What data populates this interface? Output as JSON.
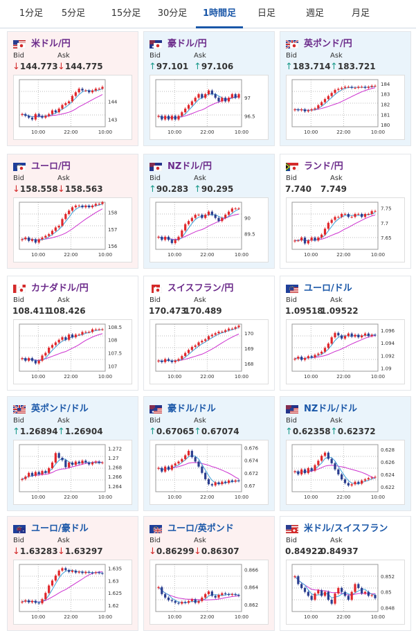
{
  "tabs": [
    {
      "label": "1分足",
      "active": false
    },
    {
      "label": "5分足",
      "active": false
    },
    {
      "label": "15分足",
      "active": false
    },
    {
      "label": "30分足",
      "active": false
    },
    {
      "label": "1時間足",
      "active": true
    },
    {
      "label": "日足",
      "active": false
    },
    {
      "label": "週足",
      "active": false
    },
    {
      "label": "月足",
      "active": false
    }
  ],
  "labels": {
    "bid": "Bid",
    "ask": "Ask"
  },
  "colors": {
    "accent": "#1a57a8",
    "down": "#d42a2a",
    "up": "#1a9a8a",
    "ma_short": "#3aa0d8",
    "ma_long": "#cc2fcf",
    "candle_up": "#e0262b",
    "candle_down": "#2a3d8f"
  },
  "cards": [
    {
      "name": "usd-jpy",
      "title": "米ドル/円",
      "flags": [
        "us",
        "jp"
      ],
      "dir": "down",
      "bid": "144.773",
      "ask": "144.775",
      "arrow": "down",
      "chart_data": {
        "type": "candlestick",
        "x_ticks": [
          "10:00",
          "22:00",
          "10:00"
        ],
        "y_ticks": [
          "144",
          "143"
        ],
        "ylim": [
          142.6,
          145.2
        ],
        "closes": [
          143.3,
          143.2,
          143.1,
          143.0,
          143.3,
          143.2,
          143.1,
          143.2,
          143.3,
          143.5,
          143.4,
          143.6,
          143.8,
          143.9,
          144.0,
          144.3,
          144.5,
          144.7,
          144.6,
          144.6,
          144.5,
          144.6,
          144.7,
          144.7,
          144.8
        ]
      }
    },
    {
      "name": "aud-jpy",
      "title": "豪ドル/円",
      "flags": [
        "au",
        "jp"
      ],
      "dir": "up",
      "bid": "97.101",
      "ask": "97.106",
      "arrow": "up",
      "chart_data": {
        "type": "candlestick",
        "x_ticks": [
          "10:00",
          "22:00",
          "10:00"
        ],
        "y_ticks": [
          "97",
          "96.5"
        ],
        "ylim": [
          96.2,
          97.5
        ],
        "closes": [
          96.5,
          96.4,
          96.5,
          96.4,
          96.5,
          96.4,
          96.5,
          96.6,
          96.7,
          96.8,
          96.9,
          97.0,
          97.1,
          97.0,
          97.1,
          97.2,
          97.1,
          97.0,
          96.9,
          97.0,
          96.9,
          97.0,
          97.1,
          97.0,
          97.1
        ]
      }
    },
    {
      "name": "gbp-jpy",
      "title": "英ポンド/円",
      "flags": [
        "gb",
        "jp"
      ],
      "dir": "up",
      "bid": "183.714",
      "ask": "183.721",
      "arrow": "up",
      "chart_data": {
        "type": "candlestick",
        "x_ticks": [
          "10:00",
          "22:00",
          "10:00"
        ],
        "y_ticks": [
          "184",
          "183",
          "182",
          "181",
          "180"
        ],
        "ylim": [
          179.8,
          184.4
        ],
        "closes": [
          181.5,
          181.4,
          181.5,
          181.3,
          181.4,
          181.5,
          181.6,
          181.9,
          182.2,
          182.5,
          182.8,
          183.1,
          183.4,
          183.5,
          183.6,
          183.7,
          183.7,
          183.6,
          183.6,
          183.7,
          183.7,
          183.6,
          183.7,
          183.8,
          183.8
        ]
      }
    },
    {
      "name": "eur-jpy",
      "title": "ユーロ/円",
      "flags": [
        "eu",
        "jp"
      ],
      "dir": "down",
      "bid": "158.558",
      "ask": "158.563",
      "arrow": "down",
      "chart_data": {
        "type": "candlestick",
        "x_ticks": [
          "10:00",
          "22:00",
          "10:00"
        ],
        "y_ticks": [
          "158",
          "157",
          "156"
        ],
        "ylim": [
          155.8,
          158.6
        ],
        "closes": [
          156.4,
          156.5,
          156.3,
          156.4,
          156.2,
          156.4,
          156.5,
          156.6,
          156.7,
          156.9,
          157.1,
          157.2,
          157.6,
          157.9,
          158.1,
          158.3,
          158.4,
          158.4,
          158.3,
          158.4,
          158.3,
          158.4,
          158.5,
          158.5,
          158.6
        ]
      }
    },
    {
      "name": "nzd-jpy",
      "title": "NZドル/円",
      "flags": [
        "nz",
        "jp"
      ],
      "dir": "up",
      "bid": "90.283",
      "ask": "90.295",
      "arrow": "up",
      "chart_data": {
        "type": "candlestick",
        "x_ticks": [
          "10:00",
          "22:00",
          "10:00"
        ],
        "y_ticks": [
          "90",
          "89.5"
        ],
        "ylim": [
          89.0,
          90.5
        ],
        "closes": [
          89.4,
          89.3,
          89.4,
          89.3,
          89.2,
          89.3,
          89.4,
          89.6,
          89.8,
          89.9,
          90.0,
          90.1,
          90.1,
          90.0,
          90.1,
          90.2,
          90.1,
          90.0,
          89.9,
          90.0,
          90.1,
          90.2,
          90.3,
          90.3,
          90.3
        ]
      }
    },
    {
      "name": "zar-jpy",
      "title": "ランド/円",
      "flags": [
        "za",
        "jp"
      ],
      "dir": "flat",
      "bid": "7.740",
      "ask": "7.749",
      "arrow": "none",
      "chart_data": {
        "type": "candlestick",
        "x_ticks": [
          "10:00",
          "22:00",
          "10:00"
        ],
        "y_ticks": [
          "7.75",
          "7.7",
          "7.65"
        ],
        "ylim": [
          7.61,
          7.77
        ],
        "closes": [
          7.64,
          7.64,
          7.65,
          7.63,
          7.64,
          7.65,
          7.64,
          7.65,
          7.66,
          7.68,
          7.7,
          7.71,
          7.72,
          7.72,
          7.73,
          7.73,
          7.72,
          7.72,
          7.73,
          7.73,
          7.72,
          7.73,
          7.73,
          7.74,
          7.74
        ]
      }
    },
    {
      "name": "cad-jpy",
      "title": "カナダドル/円",
      "flags": [
        "ca",
        "jp"
      ],
      "dir": "flat",
      "bid": "108.411",
      "ask": "108.426",
      "arrow": "none",
      "chart_data": {
        "type": "candlestick",
        "x_ticks": [
          "10:00",
          "22:00",
          "10:00"
        ],
        "y_ticks": [
          "108.5",
          "108",
          "107.5",
          "107"
        ],
        "ylim": [
          106.8,
          108.6
        ],
        "closes": [
          107.3,
          107.2,
          107.3,
          107.2,
          107.1,
          107.2,
          107.4,
          107.5,
          107.7,
          107.8,
          107.9,
          108.0,
          108.1,
          108.0,
          108.2,
          108.1,
          108.2,
          108.2,
          108.3,
          108.3,
          108.3,
          108.4,
          108.4,
          108.4,
          108.4
        ]
      }
    },
    {
      "name": "chf-jpy",
      "title": "スイスフラン/円",
      "flags": [
        "ch",
        "jp"
      ],
      "dir": "flat",
      "bid": "170.473",
      "ask": "170.489",
      "arrow": "none",
      "chart_data": {
        "type": "candlestick",
        "x_ticks": [
          "10:00",
          "22:00",
          "10:00"
        ],
        "y_ticks": [
          "170",
          "169",
          "168"
        ],
        "ylim": [
          167.5,
          170.6
        ],
        "closes": [
          168.2,
          168.1,
          168.3,
          168.2,
          168.1,
          168.2,
          168.3,
          168.5,
          168.7,
          168.9,
          169.1,
          169.2,
          169.4,
          169.5,
          169.6,
          169.8,
          169.9,
          170.0,
          170.1,
          170.1,
          170.2,
          170.3,
          170.3,
          170.4,
          170.5
        ]
      }
    },
    {
      "name": "eur-usd",
      "title": "ユーロ/ドル",
      "flags": [
        "eu",
        "us"
      ],
      "dir": "flat",
      "bid": "1.09518",
      "ask": "1.09522",
      "arrow": "none",
      "chart_data": {
        "type": "candlestick",
        "x_ticks": [
          "10:00",
          "22:00",
          "10:00"
        ],
        "y_ticks": [
          "1.096",
          "1.094",
          "1.092",
          "1.09"
        ],
        "ylim": [
          1.0895,
          1.097
        ],
        "closes": [
          1.0915,
          1.0918,
          1.0913,
          1.0916,
          1.0919,
          1.0917,
          1.0921,
          1.0923,
          1.0926,
          1.0932,
          1.0939,
          1.0949,
          1.0956,
          1.0952,
          1.0947,
          1.0951,
          1.0955,
          1.095,
          1.0953,
          1.0949,
          1.0952,
          1.0955,
          1.0951,
          1.0953,
          1.0952
        ]
      }
    },
    {
      "name": "gbp-usd",
      "title": "英ポンド/ドル",
      "flags": [
        "gb",
        "us"
      ],
      "dir": "up",
      "bid": "1.26894",
      "ask": "1.26904",
      "arrow": "up",
      "chart_data": {
        "type": "candlestick",
        "x_ticks": [
          "10:00",
          "22:00",
          "10:00"
        ],
        "y_ticks": [
          "1.272",
          "1.27",
          "1.268",
          "1.266",
          "1.264"
        ],
        "ylim": [
          1.2628,
          1.2728
        ],
        "closes": [
          1.2655,
          1.266,
          1.2668,
          1.2662,
          1.267,
          1.2665,
          1.2672,
          1.2668,
          1.2678,
          1.269,
          1.271,
          1.27,
          1.2695,
          1.268,
          1.269,
          1.2685,
          1.2692,
          1.2688,
          1.2694,
          1.269,
          1.2686,
          1.269,
          1.2692,
          1.2689,
          1.269
        ]
      }
    },
    {
      "name": "aud-usd",
      "title": "豪ドル/ドル",
      "flags": [
        "au",
        "us"
      ],
      "dir": "up",
      "bid": "0.67065",
      "ask": "0.67074",
      "arrow": "up",
      "chart_data": {
        "type": "candlestick",
        "x_ticks": [
          "10:00",
          "22:00",
          "10:00"
        ],
        "y_ticks": [
          "0.676",
          "0.674",
          "0.672",
          "0.67"
        ],
        "ylim": [
          0.669,
          0.6765
        ],
        "closes": [
          0.6728,
          0.6722,
          0.673,
          0.6725,
          0.6732,
          0.6735,
          0.6738,
          0.6742,
          0.6748,
          0.6755,
          0.6745,
          0.6738,
          0.673,
          0.672,
          0.671,
          0.6702,
          0.67,
          0.6705,
          0.6702,
          0.6706,
          0.6704,
          0.6708,
          0.6706,
          0.6708,
          0.6707
        ]
      }
    },
    {
      "name": "nzd-usd",
      "title": "NZドル/ドル",
      "flags": [
        "nz",
        "us"
      ],
      "dir": "up",
      "bid": "0.62358",
      "ask": "0.62372",
      "arrow": "up",
      "chart_data": {
        "type": "candlestick",
        "x_ticks": [
          "10:00",
          "22:00",
          "10:00"
        ],
        "y_ticks": [
          "0.628",
          "0.626",
          "0.624",
          "0.622"
        ],
        "ylim": [
          0.6212,
          0.6288
        ],
        "closes": [
          0.6245,
          0.624,
          0.6248,
          0.6242,
          0.625,
          0.6246,
          0.6255,
          0.6262,
          0.627,
          0.6275,
          0.6265,
          0.6258,
          0.6248,
          0.624,
          0.6232,
          0.6226,
          0.6222,
          0.6224,
          0.6228,
          0.6225,
          0.623,
          0.6232,
          0.6234,
          0.6235,
          0.6236
        ]
      }
    },
    {
      "name": "eur-aud",
      "title": "ユーロ/豪ドル",
      "flags": [
        "eu",
        "au"
      ],
      "dir": "down",
      "bid": "1.63283",
      "ask": "1.63297",
      "arrow": "down",
      "chart_data": {
        "type": "candlestick",
        "x_ticks": [
          "10:00",
          "22:00",
          "10:00"
        ],
        "y_ticks": [
          "1.635",
          "1.63",
          "1.625",
          "1.62"
        ],
        "ylim": [
          1.6175,
          1.6365
        ],
        "closes": [
          1.6215,
          1.622,
          1.6212,
          1.6218,
          1.621,
          1.6208,
          1.6225,
          1.625,
          1.628,
          1.63,
          1.632,
          1.634,
          1.635,
          1.6342,
          1.6335,
          1.634,
          1.6332,
          1.6336,
          1.633,
          1.6335,
          1.6332,
          1.633,
          1.6333,
          1.633,
          1.6328
        ]
      }
    },
    {
      "name": "eur-gbp",
      "title": "ユーロ/英ポンド",
      "flags": [
        "eu",
        "gb"
      ],
      "dir": "down",
      "bid": "0.86299",
      "ask": "0.86307",
      "arrow": "down",
      "chart_data": {
        "type": "candlestick",
        "x_ticks": [
          "10:00",
          "22:00",
          "10:00"
        ],
        "y_ticks": [
          "0.866",
          "0.864",
          "0.862"
        ],
        "ylim": [
          0.8612,
          0.8666
        ],
        "closes": [
          0.864,
          0.8632,
          0.8628,
          0.8625,
          0.8624,
          0.8622,
          0.8621,
          0.8623,
          0.8622,
          0.8624,
          0.8626,
          0.8622,
          0.8624,
          0.8628,
          0.8632,
          0.8635,
          0.863,
          0.8628,
          0.8631,
          0.8633,
          0.8632,
          0.8631,
          0.8632,
          0.8631,
          0.863
        ]
      }
    },
    {
      "name": "usd-chf",
      "title": "米ドル/スイスフラン",
      "flags": [
        "us",
        "ch"
      ],
      "dir": "flat",
      "bid": "0.84922",
      "ask": "0.84937",
      "arrow": "none",
      "chart_data": {
        "type": "candlestick",
        "x_ticks": [
          "10:00",
          "22:00",
          "10:00"
        ],
        "y_ticks": [
          "0.852",
          "0.85",
          "0.848"
        ],
        "ylim": [
          0.8475,
          0.8535
        ],
        "closes": [
          0.852,
          0.851,
          0.8505,
          0.85,
          0.8495,
          0.849,
          0.8498,
          0.8502,
          0.8495,
          0.85,
          0.849,
          0.8485,
          0.8498,
          0.8505,
          0.85,
          0.8495,
          0.849,
          0.85,
          0.851,
          0.8505,
          0.8498,
          0.85,
          0.8495,
          0.8496,
          0.8492
        ]
      }
    }
  ]
}
